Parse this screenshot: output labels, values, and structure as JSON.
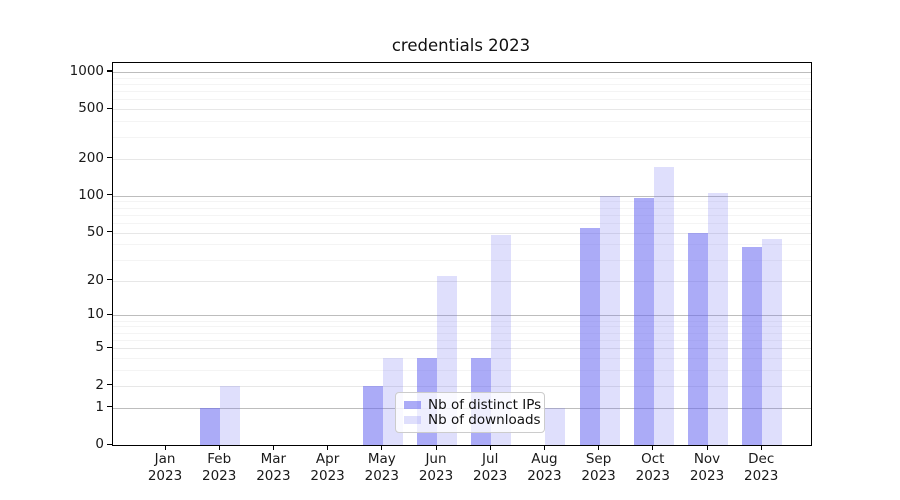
{
  "chart": {
    "colors": {
      "bar_ips": "rgba(102,102,240,0.55)",
      "bar_downloads": "rgba(102,102,240,0.21)",
      "grid_decade": "#bdbdbd",
      "grid_major": "#e7e7e7",
      "grid_minor": "#f4f4f4",
      "axis": "#000000",
      "text": "#1a1a1a"
    }
  },
  "chart_data": {
    "type": "bar",
    "title": "credentials 2023",
    "categories": [
      "Jan 2023",
      "Feb 2023",
      "Mar 2023",
      "Apr 2023",
      "May 2023",
      "Jun 2023",
      "Jul 2023",
      "Aug 2023",
      "Sep 2023",
      "Oct 2023",
      "Nov 2023",
      "Dec 2023"
    ],
    "series": [
      {
        "name": "Nb of distinct IPs",
        "values": [
          0,
          1,
          0,
          0,
          2,
          4,
          4,
          0,
          55,
          95,
          50,
          38
        ]
      },
      {
        "name": "Nb of downloads",
        "values": [
          0,
          2,
          0,
          0,
          4,
          22,
          48,
          1,
          100,
          170,
          105,
          44
        ]
      }
    ],
    "xlabel": "",
    "ylabel": "",
    "yscale": "log1p",
    "ylim": [
      0,
      1178
    ],
    "y_ticks": [
      0,
      1,
      2,
      5,
      10,
      20,
      50,
      100,
      200,
      500,
      1000
    ],
    "y_decade_gridlines": [
      1,
      10,
      100,
      1000
    ],
    "y_minor_gridlines": [
      3,
      4,
      6,
      7,
      8,
      9,
      30,
      40,
      60,
      70,
      80,
      90,
      300,
      400,
      600,
      700,
      800,
      900
    ],
    "grid": true,
    "legend_position": "lower center"
  }
}
